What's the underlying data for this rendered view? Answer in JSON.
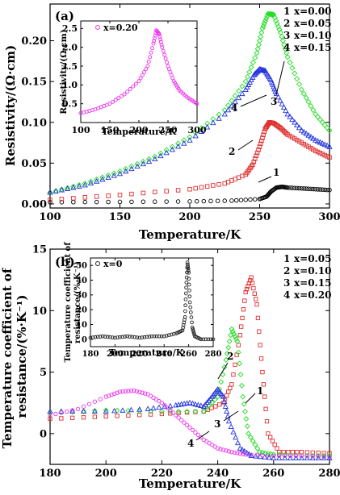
{
  "chart_data": [
    {
      "panel_label": "(a)",
      "type": "scatter",
      "xlabel": "Temperature/K",
      "ylabel": "Resistivity/(Ω·cm)",
      "xlim": [
        100,
        300
      ],
      "ylim": [
        -0.005,
        0.245
      ],
      "xticks": [
        100,
        150,
        200,
        250,
        300
      ],
      "yticks": [
        0.0,
        0.05,
        0.1,
        0.15,
        0.2
      ],
      "legend_position": "top-right",
      "legend": [
        {
          "num": "1",
          "label": "x=0.00"
        },
        {
          "num": "2",
          "label": "x=0.05"
        },
        {
          "num": "3",
          "label": "x=0.10"
        },
        {
          "num": "4",
          "label": "x=0.15"
        }
      ],
      "series": [
        {
          "name": "x=0.00",
          "color": "#000000",
          "marker": "circle",
          "x": [
            100,
            150,
            200,
            230,
            250,
            255,
            258,
            262,
            266,
            270,
            280,
            290,
            300
          ],
          "y": [
            0.002,
            0.0025,
            0.003,
            0.004,
            0.006,
            0.009,
            0.015,
            0.02,
            0.021,
            0.02,
            0.019,
            0.018,
            0.017
          ]
        },
        {
          "name": "x=0.05",
          "color": "#e03030",
          "marker": "square",
          "x": [
            100,
            150,
            200,
            225,
            240,
            245,
            250,
            254,
            257,
            260,
            265,
            270,
            280,
            290,
            300
          ],
          "y": [
            0.005,
            0.011,
            0.018,
            0.025,
            0.036,
            0.048,
            0.07,
            0.092,
            0.1,
            0.099,
            0.093,
            0.085,
            0.075,
            0.065,
            0.057
          ]
        },
        {
          "name": "x=0.10",
          "color": "#22dd22",
          "marker": "diamond",
          "x": [
            100,
            125,
            150,
            175,
            200,
            225,
            240,
            248,
            252,
            256,
            260,
            265,
            270,
            280,
            290,
            300
          ],
          "y": [
            0.014,
            0.025,
            0.04,
            0.058,
            0.082,
            0.115,
            0.15,
            0.185,
            0.215,
            0.233,
            0.232,
            0.21,
            0.18,
            0.14,
            0.11,
            0.09
          ]
        },
        {
          "name": "x=0.15",
          "color": "#2233dd",
          "marker": "triangle",
          "x": [
            100,
            125,
            150,
            175,
            200,
            225,
            240,
            246,
            250,
            254,
            258,
            262,
            270,
            280,
            290,
            300
          ],
          "y": [
            0.014,
            0.023,
            0.037,
            0.055,
            0.078,
            0.11,
            0.14,
            0.158,
            0.165,
            0.163,
            0.152,
            0.135,
            0.11,
            0.09,
            0.078,
            0.07
          ]
        }
      ],
      "annotations": [
        "1",
        "2",
        "3",
        "4"
      ],
      "inset": {
        "xlabel": "Temperature/K",
        "ylabel": "Resistivity/(Ω·cm)",
        "legend": "x=0.20",
        "color": "#ee33ee",
        "marker": "circle",
        "xlim": [
          100,
          300
        ],
        "ylim": [
          0,
          2.7
        ],
        "xticks": [
          100,
          150,
          200,
          250,
          300
        ],
        "yticks": [
          0.5,
          1.0,
          1.5,
          2.0,
          2.5
        ],
        "x": [
          100,
          125,
          150,
          175,
          200,
          215,
          225,
          230,
          235,
          240,
          250,
          260,
          270,
          285,
          300
        ],
        "y": [
          0.25,
          0.35,
          0.5,
          0.75,
          1.1,
          1.5,
          2.1,
          2.45,
          2.35,
          2.0,
          1.5,
          1.1,
          0.85,
          0.65,
          0.5
        ]
      }
    },
    {
      "panel_label": "(b)",
      "type": "scatter",
      "xlabel": "Temperature/K",
      "ylabel": "Temperature coefficient of resistance/(%·K⁻¹)",
      "xlim": [
        180,
        280
      ],
      "ylim": [
        -2.5,
        15
      ],
      "xticks": [
        180,
        200,
        220,
        240,
        260,
        280
      ],
      "yticks": [
        0,
        5,
        10,
        15
      ],
      "legend_position": "top-right",
      "legend": [
        {
          "num": "1",
          "label": "x=0.05"
        },
        {
          "num": "2",
          "label": "x=0.10"
        },
        {
          "num": "3",
          "label": "x=0.15"
        },
        {
          "num": "4",
          "label": "x=0.20"
        }
      ],
      "series": [
        {
          "name": "x=0.05",
          "color": "#e03030",
          "marker": "square",
          "x": [
            180,
            200,
            220,
            235,
            242,
            245,
            248,
            250,
            252,
            254,
            256,
            258,
            262,
            270,
            280
          ],
          "y": [
            1.2,
            1.4,
            1.6,
            1.8,
            2.5,
            4,
            8,
            11.5,
            12.7,
            10.5,
            5,
            0,
            -1.5,
            -1.5,
            -1.6
          ]
        },
        {
          "name": "x=0.10",
          "color": "#22dd22",
          "marker": "diamond",
          "x": [
            180,
            200,
            220,
            235,
            240,
            243,
            245,
            247,
            249,
            251,
            255,
            260,
            270,
            280
          ],
          "y": [
            1.7,
            1.9,
            1.8,
            1.8,
            3,
            6,
            8.5,
            7.5,
            3,
            0,
            -1.5,
            -1.7,
            -1.8,
            -1.8
          ]
        },
        {
          "name": "x=0.15",
          "color": "#2233dd",
          "marker": "triangle",
          "x": [
            180,
            200,
            215,
            225,
            230,
            235,
            238,
            240,
            242,
            244,
            248,
            252,
            260,
            270,
            280
          ],
          "y": [
            1.8,
            1.8,
            2,
            2.3,
            2.5,
            2.2,
            3,
            3.6,
            3,
            1,
            -1.2,
            -1.8,
            -2,
            -2,
            -2
          ]
        },
        {
          "name": "x=0.20",
          "color": "#ee33ee",
          "marker": "circle",
          "x": [
            180,
            190,
            200,
            205,
            210,
            215,
            220,
            225,
            230,
            235,
            240,
            245,
            250,
            260,
            270,
            280
          ],
          "y": [
            1.5,
            2,
            3,
            3.4,
            3.5,
            3.2,
            2.5,
            1.5,
            0.5,
            -0.5,
            -1.2,
            -1.5,
            -1.7,
            -1.8,
            -1.8,
            -1.9
          ]
        }
      ],
      "annotations": [
        "1",
        "2",
        "3",
        "4"
      ],
      "inset": {
        "xlabel": "Temperature/K",
        "ylabel": "Temperature coefficient of resistance/(%·K⁻¹)",
        "legend": "x=0",
        "color": "#222222",
        "marker": "circle",
        "xlim": [
          180,
          280
        ],
        "ylim": [
          -5,
          55
        ],
        "xticks": [
          180,
          200,
          220,
          240,
          260,
          280
        ],
        "yticks": [
          0,
          10,
          20,
          30,
          40,
          50
        ],
        "x": [
          180,
          190,
          200,
          210,
          220,
          230,
          240,
          250,
          255,
          257,
          258,
          259,
          260,
          261,
          263,
          265,
          270,
          280
        ],
        "y": [
          1,
          2,
          1,
          2,
          1,
          2,
          2,
          4,
          6,
          15,
          35,
          52,
          45,
          25,
          8,
          2,
          0,
          0
        ]
      }
    }
  ]
}
